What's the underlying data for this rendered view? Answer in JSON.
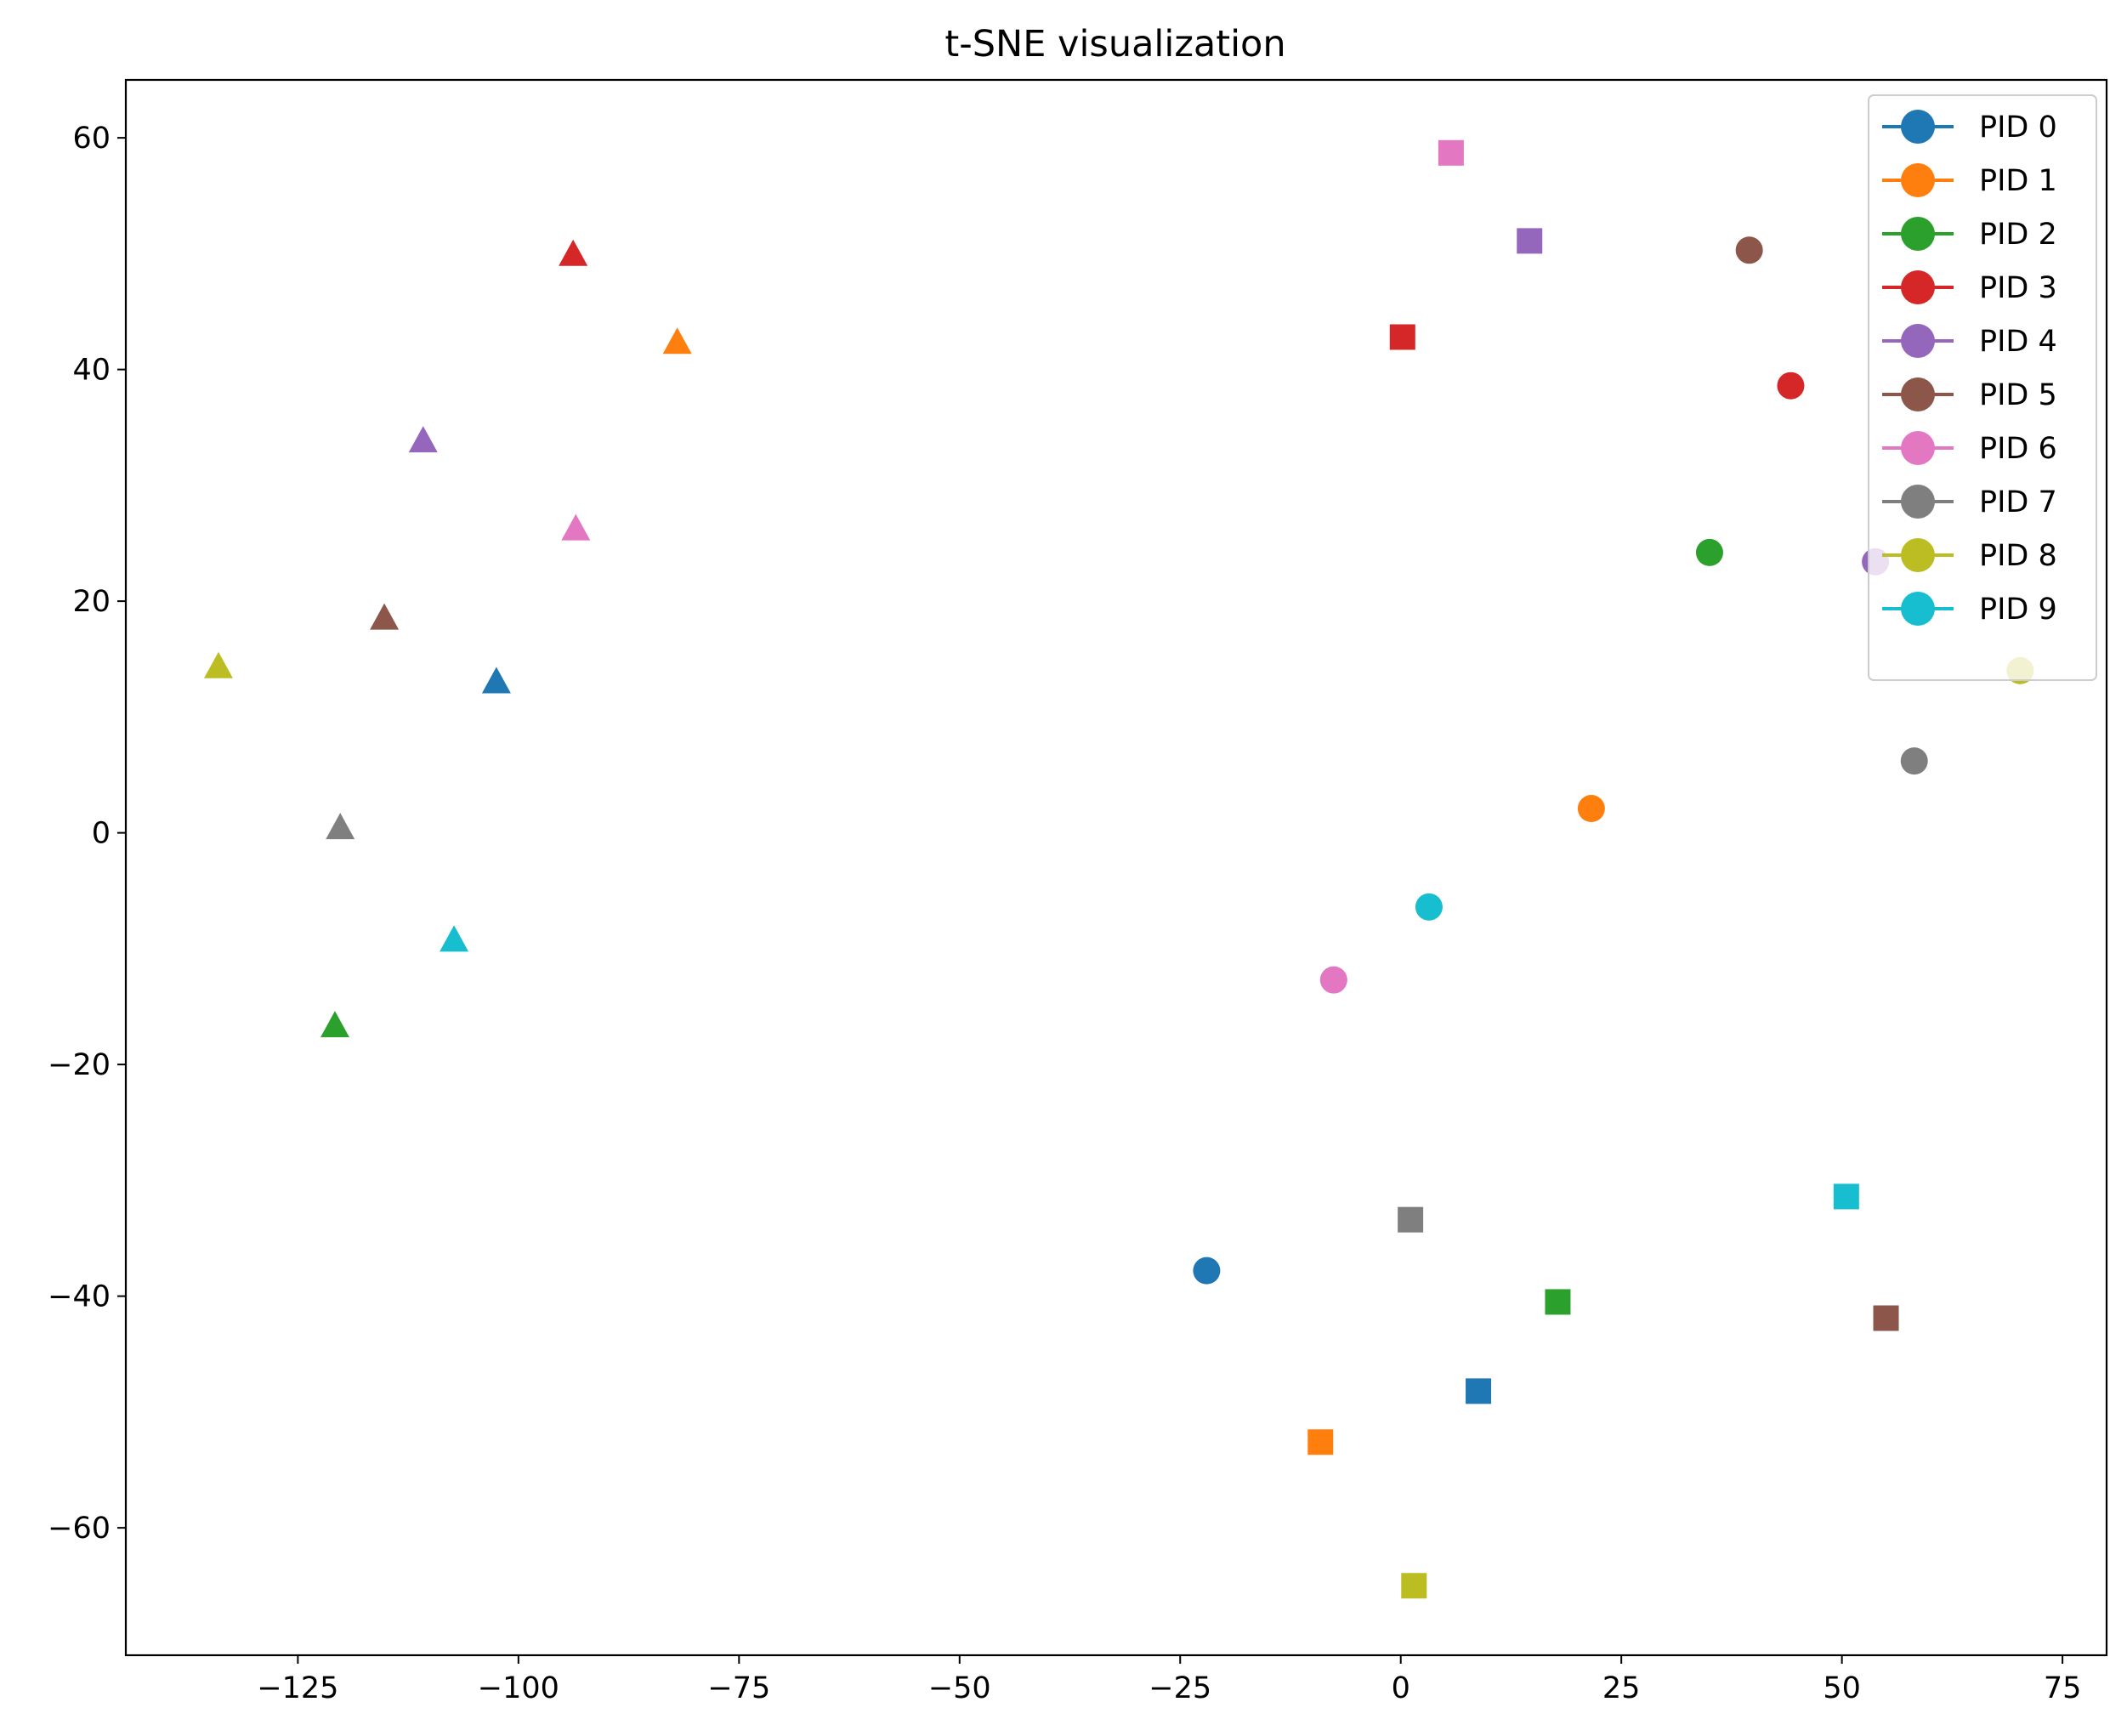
{
  "chart_data": {
    "type": "scatter",
    "title": "t-SNE visualization",
    "xlabel": "",
    "ylabel": "",
    "xlim": [
      -144.5,
      80
    ],
    "ylim": [
      -71,
      65
    ],
    "x_ticks": [
      -125,
      -100,
      -75,
      -50,
      -25,
      0,
      25,
      50,
      75
    ],
    "y_ticks": [
      -60,
      -40,
      -20,
      0,
      20,
      40,
      60
    ],
    "x_tick_labels": [
      "−125",
      "−100",
      "−75",
      "−50",
      "−25",
      "0",
      "25",
      "50",
      "75"
    ],
    "y_tick_labels": [
      "−60",
      "−40",
      "−20",
      "0",
      "20",
      "40",
      "60"
    ],
    "grid": false,
    "legend_position": "top-right",
    "series": [
      {
        "name": "PID 0",
        "color": "#1f77b4",
        "points": [
          {
            "x": -22.0,
            "y": -37.8,
            "marker": "circle"
          },
          {
            "x": -102.5,
            "y": 13.0,
            "marker": "triangle"
          },
          {
            "x": 8.8,
            "y": -48.2,
            "marker": "square"
          }
        ]
      },
      {
        "name": "PID 1",
        "color": "#ff7f0e",
        "points": [
          {
            "x": 21.6,
            "y": 2.1,
            "marker": "circle"
          },
          {
            "x": -82.0,
            "y": 42.3,
            "marker": "triangle"
          },
          {
            "x": -9.1,
            "y": -52.6,
            "marker": "square"
          }
        ]
      },
      {
        "name": "PID 2",
        "color": "#2ca02c",
        "points": [
          {
            "x": 35.0,
            "y": 24.2,
            "marker": "circle"
          },
          {
            "x": -120.8,
            "y": -16.7,
            "marker": "triangle"
          },
          {
            "x": 17.8,
            "y": -40.5,
            "marker": "square"
          }
        ]
      },
      {
        "name": "PID 3",
        "color": "#d62728",
        "points": [
          {
            "x": 44.2,
            "y": 38.6,
            "marker": "circle"
          },
          {
            "x": -93.8,
            "y": 49.9,
            "marker": "triangle"
          },
          {
            "x": 0.2,
            "y": 42.8,
            "marker": "square"
          }
        ]
      },
      {
        "name": "PID 4",
        "color": "#9467bd",
        "points": [
          {
            "x": 53.8,
            "y": 23.4,
            "marker": "circle"
          },
          {
            "x": -110.8,
            "y": 33.8,
            "marker": "triangle"
          },
          {
            "x": 14.6,
            "y": 51.1,
            "marker": "square"
          }
        ]
      },
      {
        "name": "PID 5",
        "color": "#8c564b",
        "points": [
          {
            "x": 39.5,
            "y": 50.3,
            "marker": "circle"
          },
          {
            "x": -115.2,
            "y": 18.5,
            "marker": "triangle"
          },
          {
            "x": 55.0,
            "y": -41.9,
            "marker": "square"
          }
        ]
      },
      {
        "name": "PID 6",
        "color": "#e377c2",
        "points": [
          {
            "x": -7.6,
            "y": -12.7,
            "marker": "circle"
          },
          {
            "x": -93.5,
            "y": 26.2,
            "marker": "triangle"
          },
          {
            "x": 5.7,
            "y": 58.7,
            "marker": "square"
          }
        ]
      },
      {
        "name": "PID 7",
        "color": "#7f7f7f",
        "points": [
          {
            "x": 58.2,
            "y": 6.2,
            "marker": "circle"
          },
          {
            "x": -120.2,
            "y": 0.4,
            "marker": "triangle"
          },
          {
            "x": 1.1,
            "y": -33.4,
            "marker": "square"
          }
        ]
      },
      {
        "name": "PID 8",
        "color": "#bcbd22",
        "points": [
          {
            "x": 70.2,
            "y": 14.0,
            "marker": "circle"
          },
          {
            "x": -134.0,
            "y": 14.3,
            "marker": "triangle"
          },
          {
            "x": 1.5,
            "y": -65.0,
            "marker": "square"
          }
        ]
      },
      {
        "name": "PID 9",
        "color": "#17becf",
        "points": [
          {
            "x": 3.2,
            "y": -6.4,
            "marker": "circle"
          },
          {
            "x": -107.3,
            "y": -9.3,
            "marker": "triangle"
          },
          {
            "x": 50.5,
            "y": -31.4,
            "marker": "square"
          }
        ]
      }
    ]
  }
}
